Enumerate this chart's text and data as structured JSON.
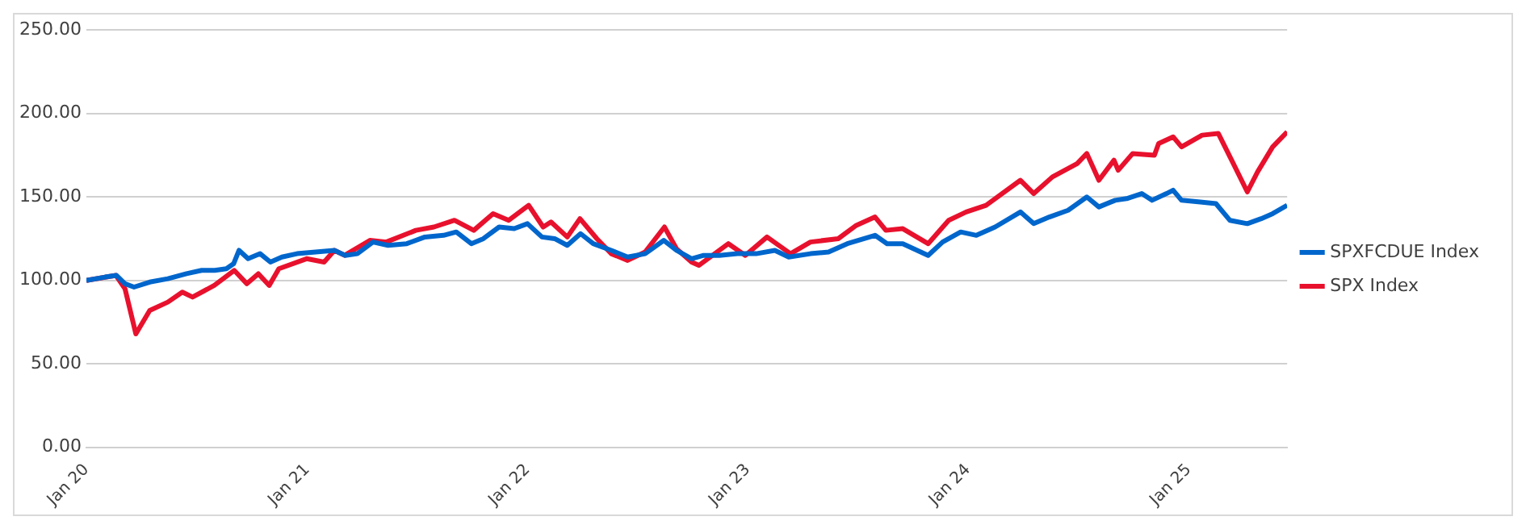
{
  "chart_data": {
    "type": "line",
    "xlim": [
      "2020-01-01",
      "2025-06-13"
    ],
    "xticks": [
      {
        "value": "2020-01-01",
        "label": "Jan 20"
      },
      {
        "value": "2021-01-01",
        "label": "Jan 21"
      },
      {
        "value": "2022-01-01",
        "label": "Jan 22"
      },
      {
        "value": "2023-01-01",
        "label": "Jan 23"
      },
      {
        "value": "2024-01-01",
        "label": "Jan 24"
      },
      {
        "value": "2025-01-01",
        "label": "Jan 25"
      }
    ],
    "ylim": [
      0,
      250
    ],
    "yticks": [
      {
        "value": 0,
        "label": "0.00"
      },
      {
        "value": 50,
        "label": "50.00"
      },
      {
        "value": 100,
        "label": "100.00"
      },
      {
        "value": 150,
        "label": "150.00"
      },
      {
        "value": 200,
        "label": "200.00"
      },
      {
        "value": 250,
        "label": "250.00"
      }
    ],
    "grid": "y",
    "legend": "right",
    "marker": "none",
    "line_style": "solid",
    "series": [
      {
        "name": "SPXFCDUE Index",
        "color": "#0066cc",
        "x": [
          "2020-01-01",
          "2020-02-01",
          "2020-02-20",
          "2020-03-05",
          "2020-03-20",
          "2020-04-15",
          "2020-05-15",
          "2020-06-15",
          "2020-07-10",
          "2020-08-01",
          "2020-08-20",
          "2020-09-01",
          "2020-09-10",
          "2020-09-25",
          "2020-10-15",
          "2020-11-01",
          "2020-11-20",
          "2020-12-15",
          "2021-01-15",
          "2021-02-15",
          "2021-03-05",
          "2021-03-25",
          "2021-04-20",
          "2021-05-15",
          "2021-06-15",
          "2021-07-15",
          "2021-08-15",
          "2021-09-05",
          "2021-09-30",
          "2021-10-20",
          "2021-11-15",
          "2021-12-10",
          "2022-01-01",
          "2022-01-25",
          "2022-02-15",
          "2022-03-08",
          "2022-03-30",
          "2022-04-20",
          "2022-05-20",
          "2022-06-16",
          "2022-07-15",
          "2022-08-15",
          "2022-09-05",
          "2022-09-30",
          "2022-10-20",
          "2022-11-15",
          "2022-12-15",
          "2023-01-15",
          "2023-02-15",
          "2023-03-10",
          "2023-04-15",
          "2023-05-15",
          "2023-06-15",
          "2023-07-31",
          "2023-08-20",
          "2023-09-15",
          "2023-10-27",
          "2023-11-20",
          "2023-12-20",
          "2024-01-15",
          "2024-02-15",
          "2024-03-28",
          "2024-04-19",
          "2024-05-15",
          "2024-06-15",
          "2024-07-16",
          "2024-08-05",
          "2024-09-01",
          "2024-09-20",
          "2024-10-15",
          "2024-11-01",
          "2024-11-25",
          "2024-12-06",
          "2024-12-20",
          "2025-01-20",
          "2025-02-15",
          "2025-03-10",
          "2025-04-08",
          "2025-05-01",
          "2025-05-20",
          "2025-06-13"
        ],
        "values": [
          100,
          102,
          103,
          98,
          96,
          99,
          101,
          104,
          106,
          106,
          107,
          110,
          118,
          113,
          116,
          111,
          114,
          116,
          117,
          118,
          115,
          116,
          123,
          121,
          122,
          126,
          127,
          129,
          122,
          125,
          132,
          131,
          134,
          126,
          125,
          121,
          128,
          122,
          118,
          114,
          116,
          124,
          118,
          113,
          115,
          115,
          116,
          116,
          118,
          114,
          116,
          117,
          122,
          127,
          122,
          122,
          115,
          123,
          129,
          127,
          132,
          141,
          134,
          138,
          142,
          150,
          144,
          148,
          149,
          152,
          148,
          152,
          154,
          148,
          147,
          146,
          136,
          134,
          137,
          140,
          145
        ]
      },
      {
        "name": "SPX Index",
        "color": "#e8112d",
        "x": [
          "2020-01-01",
          "2020-02-19",
          "2020-03-05",
          "2020-03-23",
          "2020-04-15",
          "2020-05-15",
          "2020-06-08",
          "2020-06-25",
          "2020-07-31",
          "2020-09-02",
          "2020-09-23",
          "2020-10-12",
          "2020-10-30",
          "2020-11-15",
          "2020-12-31",
          "2021-01-29",
          "2021-02-15",
          "2021-03-04",
          "2021-04-15",
          "2021-05-12",
          "2021-06-30",
          "2021-07-30",
          "2021-09-02",
          "2021-10-04",
          "2021-11-05",
          "2021-12-01",
          "2022-01-03",
          "2022-01-27",
          "2022-02-09",
          "2022-03-08",
          "2022-03-29",
          "2022-04-26",
          "2022-05-20",
          "2022-06-16",
          "2022-07-15",
          "2022-08-16",
          "2022-09-05",
          "2022-09-30",
          "2022-10-12",
          "2022-11-30",
          "2022-12-28",
          "2023-02-02",
          "2023-03-13",
          "2023-04-15",
          "2023-05-31",
          "2023-06-30",
          "2023-07-31",
          "2023-08-18",
          "2023-09-15",
          "2023-10-27",
          "2023-11-30",
          "2023-12-29",
          "2024-01-31",
          "2024-03-28",
          "2024-04-19",
          "2024-05-20",
          "2024-06-30",
          "2024-07-16",
          "2024-08-05",
          "2024-08-30",
          "2024-09-06",
          "2024-09-30",
          "2024-11-05",
          "2024-11-12",
          "2024-12-06",
          "2024-12-20",
          "2025-01-23",
          "2025-02-19",
          "2025-03-13",
          "2025-04-08",
          "2025-04-25",
          "2025-05-20",
          "2025-06-13"
        ],
        "values": [
          100,
          103,
          95,
          68,
          82,
          87,
          93,
          90,
          97,
          106,
          98,
          104,
          97,
          107,
          113,
          111,
          118,
          115,
          124,
          123,
          130,
          132,
          136,
          130,
          140,
          136,
          145,
          132,
          135,
          126,
          137,
          125,
          116,
          112,
          117,
          132,
          119,
          111,
          109,
          122,
          115,
          126,
          116,
          123,
          125,
          133,
          138,
          130,
          131,
          122,
          136,
          141,
          145,
          160,
          152,
          162,
          170,
          176,
          160,
          172,
          166,
          176,
          175,
          182,
          186,
          180,
          187,
          188,
          172,
          153,
          165,
          180,
          189
        ]
      }
    ]
  }
}
